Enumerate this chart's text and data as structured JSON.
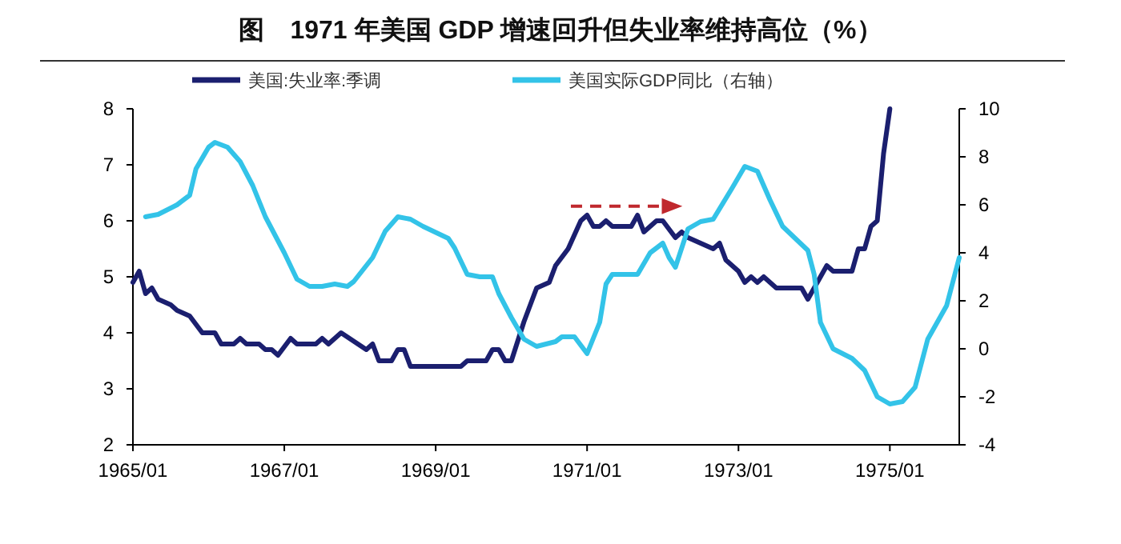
{
  "chart_data": {
    "type": "line",
    "title": "图　1971 年美国 GDP 增速回升但失业率维持高位（%）",
    "xlim": [
      "1965-01",
      "1975-12"
    ],
    "xticks": [
      {
        "value": "1965-01",
        "label": "1965/01"
      },
      {
        "value": "1967-01",
        "label": "1967/01"
      },
      {
        "value": "1969-01",
        "label": "1969/01"
      },
      {
        "value": "1971-01",
        "label": "1971/01"
      },
      {
        "value": "1973-01",
        "label": "1973/01"
      },
      {
        "value": "1975-01",
        "label": "1975/01"
      }
    ],
    "ylim": [
      2,
      8
    ],
    "yticks": [
      2,
      3,
      4,
      5,
      6,
      7,
      8
    ],
    "y2lim": [
      -4,
      10
    ],
    "y2ticks": [
      -4,
      -2,
      0,
      2,
      4,
      6,
      8,
      10
    ],
    "legend": "top",
    "grid": false,
    "series": [
      {
        "name": "美国:失业率:季调",
        "color": "#1b1f6f",
        "x": [
          "1965-01",
          "1965-02",
          "1965-03",
          "1965-04",
          "1965-05",
          "1965-07",
          "1965-08",
          "1965-10",
          "1965-12",
          "1966-02",
          "1966-03",
          "1966-05",
          "1966-06",
          "1966-07",
          "1966-09",
          "1966-10",
          "1966-11",
          "1966-12",
          "1967-02",
          "1967-03",
          "1967-06",
          "1967-07",
          "1967-08",
          "1967-10",
          "1968-02",
          "1968-03",
          "1968-04",
          "1968-06",
          "1968-07",
          "1968-08",
          "1968-09",
          "1969-05",
          "1969-06",
          "1969-09",
          "1969-10",
          "1969-11",
          "1969-12",
          "1970-01",
          "1970-03",
          "1970-05",
          "1970-07",
          "1970-08",
          "1970-10",
          "1970-12",
          "1971-01",
          "1971-02",
          "1971-03",
          "1971-04",
          "1971-05",
          "1971-08",
          "1971-09",
          "1971-10",
          "1971-12",
          "1972-01",
          "1972-03",
          "1972-04",
          "1972-05",
          "1972-07",
          "1972-09",
          "1972-10",
          "1972-11",
          "1973-01",
          "1973-02",
          "1973-03",
          "1973-04",
          "1973-05",
          "1973-06",
          "1973-07",
          "1973-10",
          "1973-11",
          "1973-12",
          "1974-01",
          "1974-02",
          "1974-03",
          "1974-04",
          "1974-07",
          "1974-08",
          "1974-09",
          "1974-10",
          "1974-11",
          "1974-12",
          "1975-01"
        ],
        "values": [
          4.9,
          5.1,
          4.7,
          4.8,
          4.6,
          4.5,
          4.4,
          4.3,
          4.0,
          4.0,
          3.8,
          3.8,
          3.9,
          3.8,
          3.8,
          3.7,
          3.7,
          3.6,
          3.9,
          3.8,
          3.8,
          3.9,
          3.8,
          4.0,
          3.7,
          3.8,
          3.5,
          3.5,
          3.7,
          3.7,
          3.4,
          3.4,
          3.5,
          3.5,
          3.7,
          3.7,
          3.5,
          3.5,
          4.2,
          4.8,
          4.9,
          5.2,
          5.5,
          6.0,
          6.1,
          5.9,
          5.9,
          6.0,
          5.9,
          5.9,
          6.1,
          5.8,
          6.0,
          6.0,
          5.7,
          5.8,
          5.7,
          5.6,
          5.5,
          5.6,
          5.3,
          5.1,
          4.9,
          5.0,
          4.9,
          5.0,
          4.9,
          4.8,
          4.8,
          4.8,
          4.6,
          4.8,
          5.0,
          5.2,
          5.1,
          5.1,
          5.5,
          5.5,
          5.9,
          6.0,
          7.2,
          8.0
        ]
      },
      {
        "name": "美国实际GDP同比（右轴）",
        "color": "#33c3e8",
        "axis": "y2",
        "x": [
          "1965-03",
          "1965-05",
          "1965-08",
          "1965-10",
          "1965-11",
          "1966-01",
          "1966-02",
          "1966-04",
          "1966-06",
          "1966-08",
          "1966-10",
          "1967-01",
          "1967-03",
          "1967-05",
          "1967-07",
          "1967-09",
          "1967-11",
          "1967-12",
          "1968-03",
          "1968-05",
          "1968-07",
          "1968-09",
          "1968-11",
          "1969-03",
          "1969-04",
          "1969-06",
          "1969-08",
          "1969-10",
          "1969-11",
          "1970-01",
          "1970-03",
          "1970-05",
          "1970-08",
          "1970-09",
          "1970-11",
          "1971-01",
          "1971-03",
          "1971-04",
          "1971-05",
          "1971-09",
          "1971-11",
          "1972-01",
          "1972-02",
          "1972-03",
          "1972-05",
          "1972-07",
          "1972-09",
          "1972-12",
          "1973-02",
          "1973-04",
          "1973-06",
          "1973-08",
          "1973-10",
          "1973-12",
          "1974-01",
          "1974-02",
          "1974-04",
          "1974-07",
          "1974-09",
          "1974-11",
          "1975-01",
          "1975-03",
          "1975-05",
          "1975-07",
          "1975-10",
          "1975-11",
          "1975-12"
        ],
        "values": [
          5.5,
          5.6,
          6.0,
          6.4,
          7.5,
          8.4,
          8.6,
          8.4,
          7.8,
          6.8,
          5.5,
          4.0,
          2.9,
          2.6,
          2.6,
          2.7,
          2.6,
          2.8,
          3.8,
          4.9,
          5.5,
          5.4,
          5.1,
          4.6,
          4.2,
          3.1,
          3.0,
          3.0,
          2.3,
          1.3,
          0.4,
          0.1,
          0.3,
          0.5,
          0.5,
          -0.2,
          1.1,
          2.7,
          3.1,
          3.1,
          4.0,
          4.4,
          3.8,
          3.4,
          5.0,
          5.3,
          5.4,
          6.7,
          7.6,
          7.4,
          6.2,
          5.1,
          4.6,
          4.1,
          3.1,
          1.1,
          0.0,
          -0.4,
          -0.9,
          -2.0,
          -2.3,
          -2.2,
          -1.6,
          0.4,
          1.8,
          2.8,
          3.8
        ]
      }
    ]
  }
}
